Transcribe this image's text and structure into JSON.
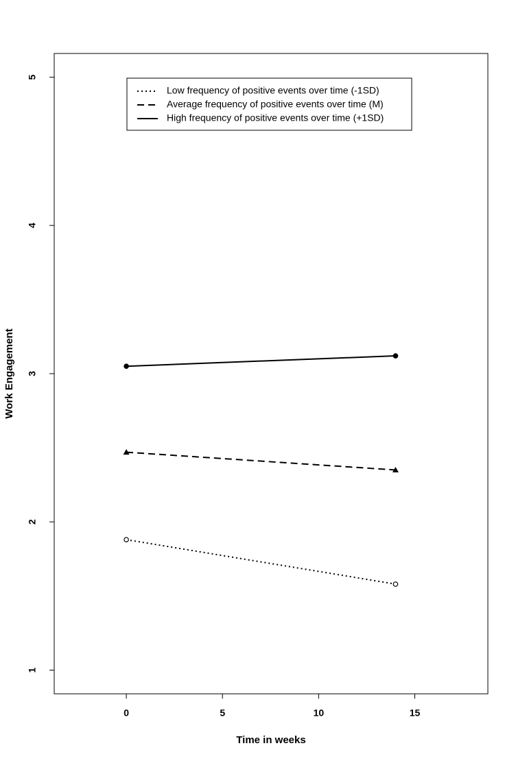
{
  "chart_data": {
    "type": "line",
    "x_label": "Time in weeks",
    "y_label": "Work Engagement",
    "x": [
      0,
      14
    ],
    "xlim": [
      -3.75,
      18.8
    ],
    "xticks": [
      0,
      5,
      10,
      15
    ],
    "ylim": [
      0.84,
      5.16
    ],
    "yticks": [
      1,
      2,
      3,
      4,
      5
    ],
    "series": [
      {
        "name": "Low frequency of positive events over time (-1SD)",
        "color": "#000000",
        "dash": "dotted",
        "marker": "open-circle",
        "values": [
          1.88,
          1.58
        ]
      },
      {
        "name": "Average frequency of positive events over time (M)",
        "color": "#000000",
        "dash": "dashed",
        "marker": "filled-triangle",
        "values": [
          2.47,
          2.35
        ]
      },
      {
        "name": "High frequency of positive events over time (+1SD)",
        "color": "#000000",
        "dash": "solid",
        "marker": "filled-circle",
        "values": [
          3.05,
          3.12
        ]
      }
    ]
  }
}
